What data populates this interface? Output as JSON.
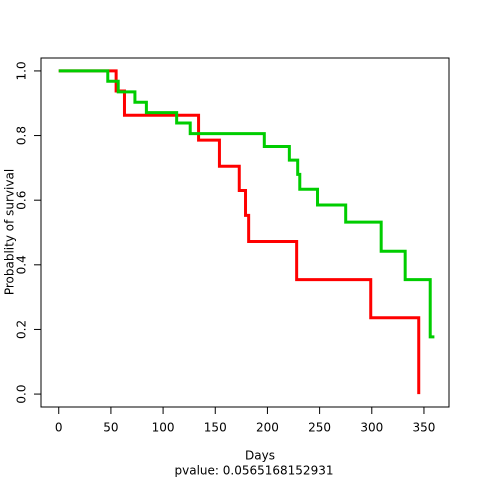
{
  "chart_data": {
    "type": "step",
    "x_label": "Days",
    "y_label": "Probablity of survival",
    "subtitle": "pvalue: 0.0565168152931",
    "xlim": [
      -17,
      374
    ],
    "ylim": [
      -0.04,
      1.04
    ],
    "xticks": [
      0,
      50,
      100,
      150,
      200,
      250,
      300,
      350
    ],
    "yticks": [
      {
        "value": 0,
        "label": "0.0"
      },
      0.2,
      0.4,
      0.6,
      0.8,
      {
        "value": 1,
        "label": "1.0"
      }
    ],
    "series": [
      {
        "color": "#ff0000",
        "x": [
          0,
          55,
          63,
          134,
          154,
          173,
          179,
          182,
          228,
          299,
          345
        ],
        "values": [
          1,
          0.938,
          0.863,
          0.786,
          0.705,
          0.63,
          0.553,
          0.472,
          0.354,
          0.236,
          0
        ]
      },
      {
        "color": "#00cd00",
        "x": [
          0,
          47,
          57,
          73,
          84,
          113,
          126,
          197,
          221,
          229,
          231,
          248,
          275,
          309,
          332,
          356,
          360
        ],
        "values": [
          1,
          0.968,
          0.935,
          0.903,
          0.871,
          0.839,
          0.806,
          0.766,
          0.724,
          0.68,
          0.634,
          0.585,
          0.532,
          0.442,
          0.354,
          0.177,
          0.177
        ]
      }
    ]
  }
}
